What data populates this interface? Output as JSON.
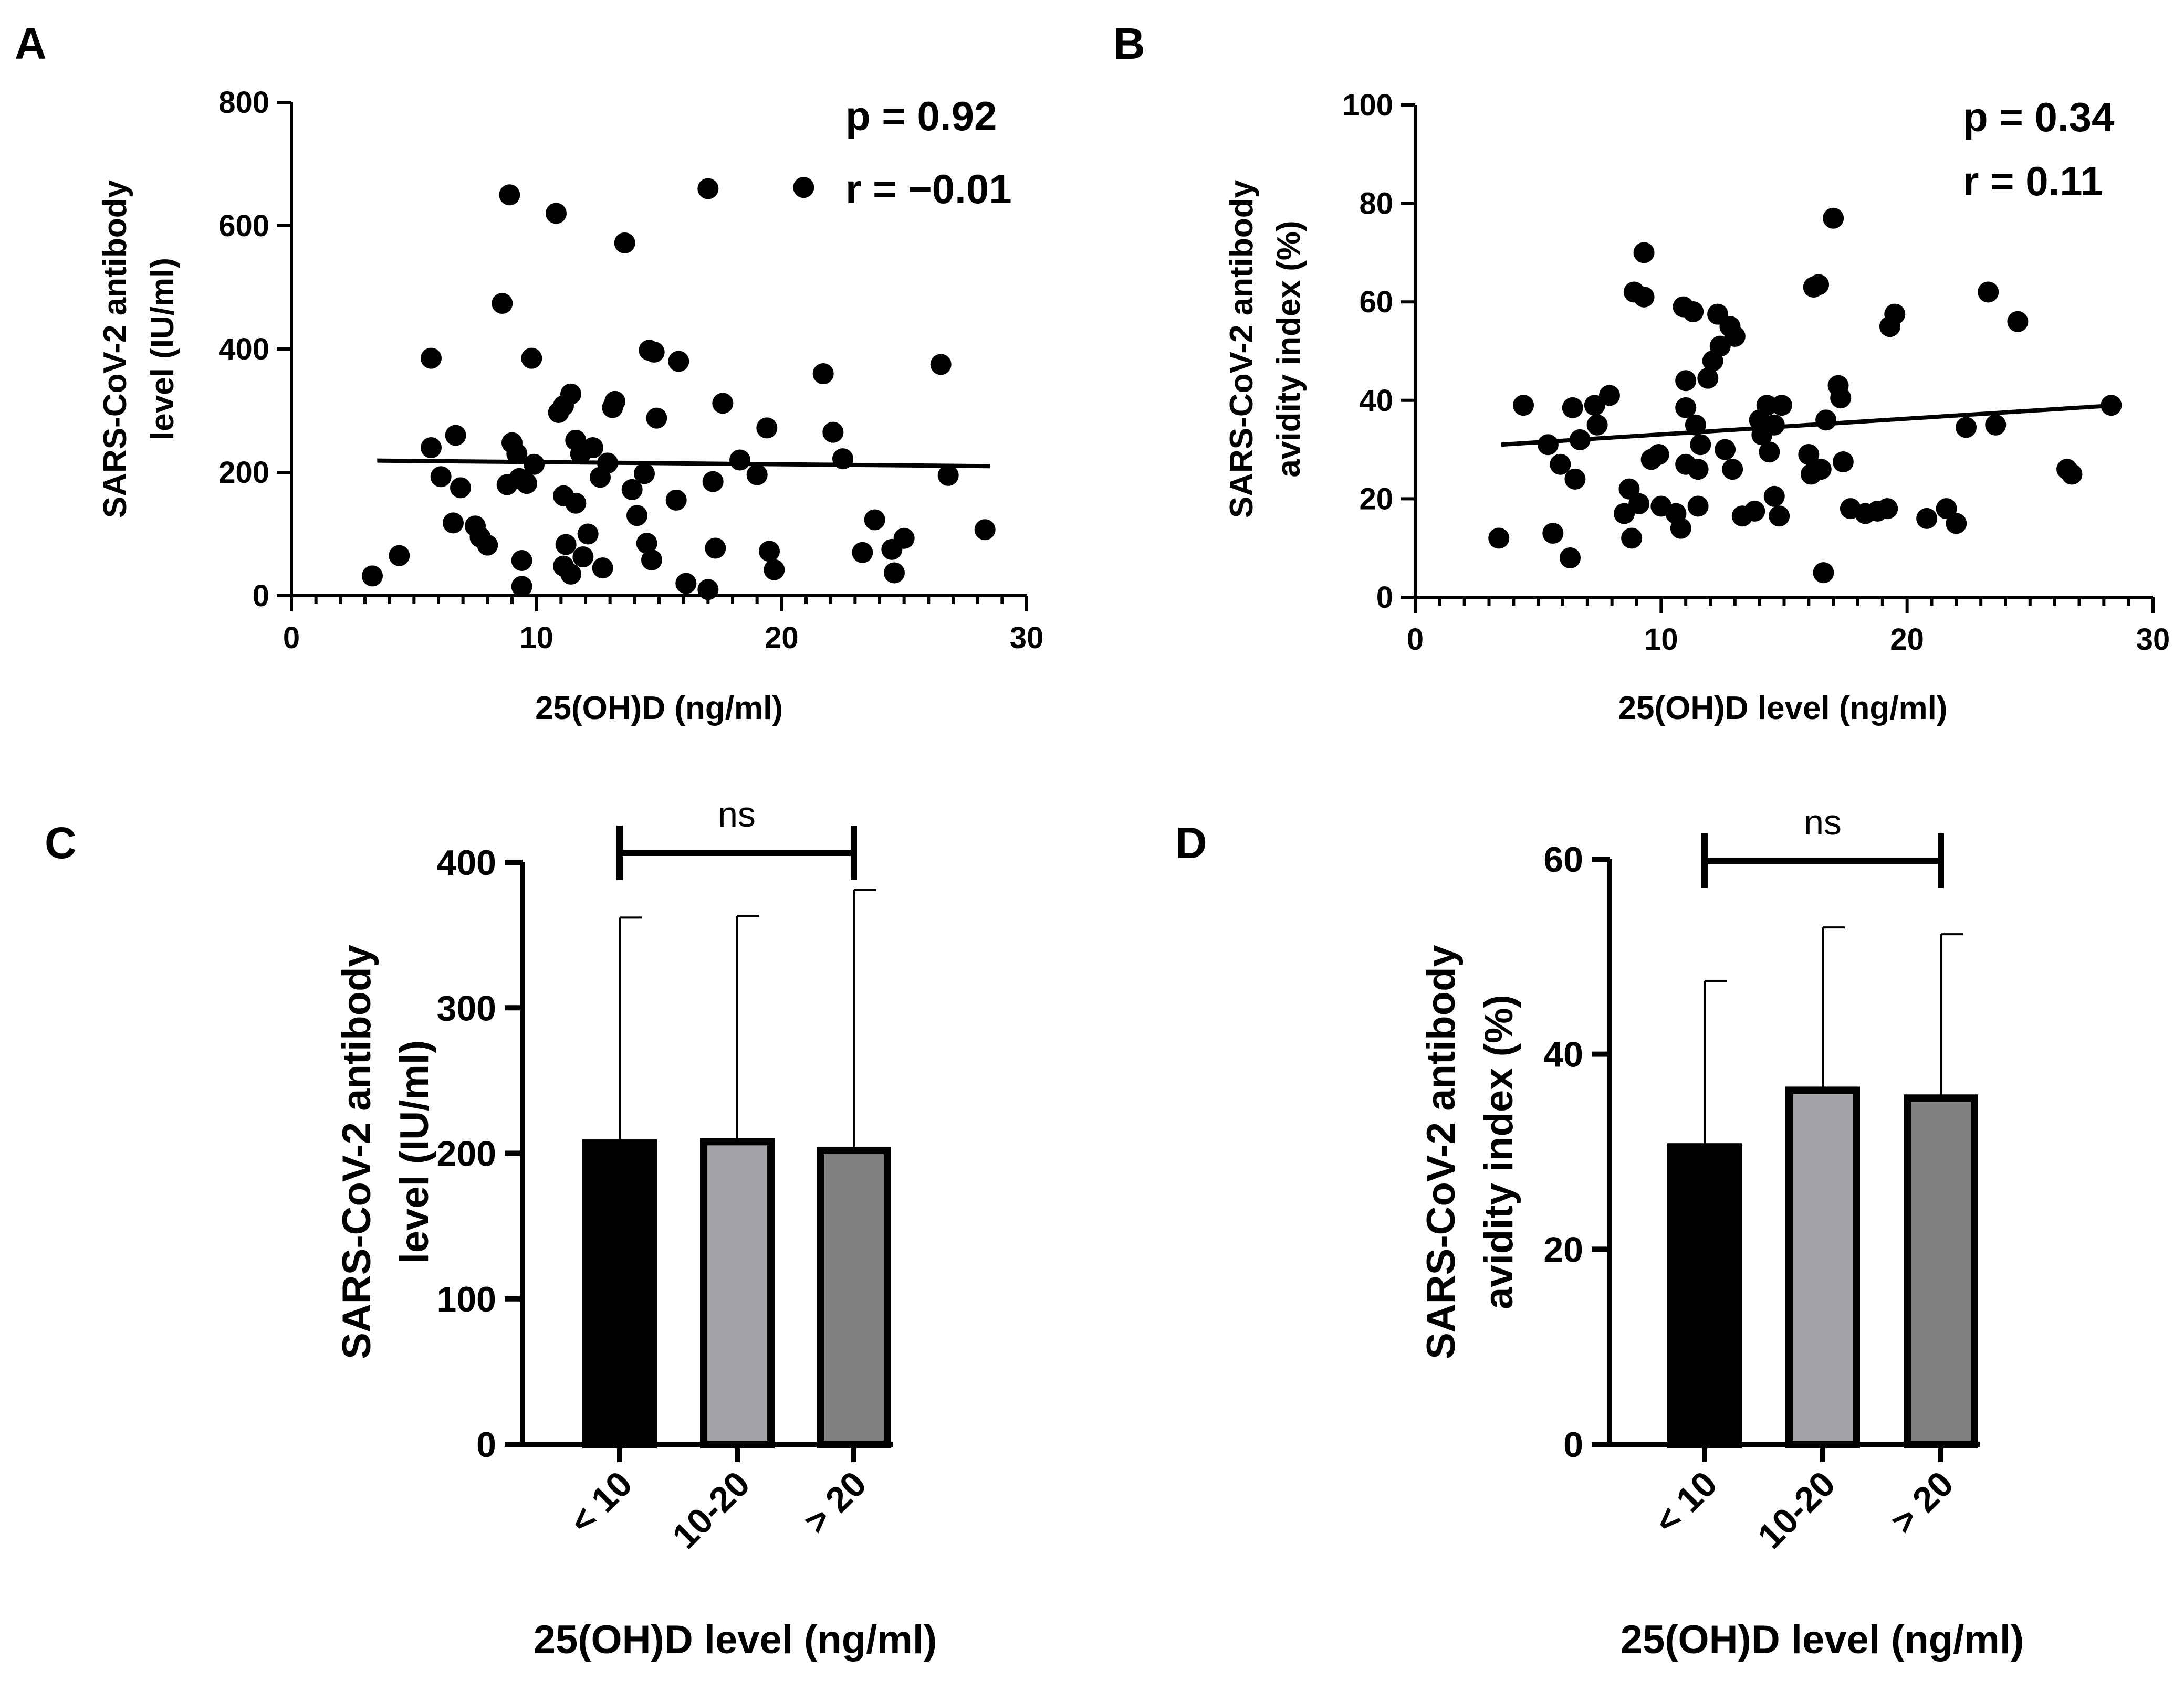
{
  "figure": {
    "panels": {
      "A": {
        "letter": "A"
      },
      "B": {
        "letter": "B"
      },
      "C": {
        "letter": "C"
      },
      "D": {
        "letter": "D"
      }
    }
  },
  "chart_data": [
    {
      "panel": "A",
      "type": "scatter",
      "title": "",
      "xlabel": "25(OH)D (ng/ml)",
      "ylabel": [
        "SARS-CoV-2 antibody",
        "level (IU/ml)"
      ],
      "xlim": [
        0,
        30
      ],
      "ylim": [
        0,
        800
      ],
      "xticks": [
        0,
        10,
        20,
        30
      ],
      "yticks": [
        0,
        200,
        400,
        600,
        800
      ],
      "x_minor_step": 1,
      "annotations": {
        "p": "p = 0.92",
        "r": "r =  −0.01"
      },
      "regression": {
        "x": [
          3.5,
          28.5
        ],
        "y": [
          219,
          210
        ]
      },
      "points": [
        [
          3.3,
          32
        ],
        [
          4.4,
          65
        ],
        [
          5.7,
          240
        ],
        [
          5.7,
          385
        ],
        [
          6.1,
          193
        ],
        [
          6.6,
          118
        ],
        [
          6.7,
          260
        ],
        [
          6.9,
          175
        ],
        [
          7.5,
          113
        ],
        [
          7.7,
          95
        ],
        [
          8.0,
          82
        ],
        [
          8.6,
          474
        ],
        [
          8.9,
          650
        ],
        [
          8.8,
          180
        ],
        [
          9.0,
          248
        ],
        [
          9.2,
          230
        ],
        [
          9.3,
          190
        ],
        [
          9.4,
          57
        ],
        [
          9.4,
          15
        ],
        [
          9.6,
          182
        ],
        [
          9.8,
          385
        ],
        [
          9.9,
          213
        ],
        [
          10.8,
          620
        ],
        [
          10.9,
          297
        ],
        [
          11.1,
          308
        ],
        [
          11.1,
          162
        ],
        [
          11.2,
          83
        ],
        [
          11.1,
          48
        ],
        [
          11.4,
          327
        ],
        [
          11.4,
          35
        ],
        [
          11.6,
          252
        ],
        [
          11.6,
          150
        ],
        [
          11.8,
          230
        ],
        [
          11.9,
          63
        ],
        [
          12.1,
          100
        ],
        [
          12.3,
          240
        ],
        [
          12.6,
          192
        ],
        [
          12.7,
          45
        ],
        [
          12.9,
          215
        ],
        [
          13.1,
          305
        ],
        [
          13.2,
          315
        ],
        [
          13.6,
          572
        ],
        [
          13.9,
          172
        ],
        [
          14.1,
          130
        ],
        [
          14.4,
          198
        ],
        [
          14.5,
          85
        ],
        [
          14.6,
          398
        ],
        [
          14.7,
          58
        ],
        [
          14.8,
          395
        ],
        [
          14.9,
          288
        ],
        [
          15.7,
          155
        ],
        [
          15.8,
          380
        ],
        [
          16.1,
          20
        ],
        [
          17.0,
          10
        ],
        [
          17.0,
          660
        ],
        [
          17.3,
          77
        ],
        [
          17.2,
          185
        ],
        [
          17.6,
          312
        ],
        [
          18.3,
          220
        ],
        [
          19.0,
          196
        ],
        [
          19.4,
          272
        ],
        [
          19.5,
          72
        ],
        [
          19.7,
          42
        ],
        [
          20.9,
          662
        ],
        [
          21.7,
          360
        ],
        [
          22.1,
          265
        ],
        [
          22.5,
          222
        ],
        [
          23.3,
          70
        ],
        [
          23.8,
          123
        ],
        [
          24.5,
          75
        ],
        [
          24.6,
          37
        ],
        [
          25.0,
          93
        ],
        [
          26.5,
          375
        ],
        [
          26.8,
          195
        ],
        [
          28.3,
          107
        ]
      ]
    },
    {
      "panel": "B",
      "type": "scatter",
      "title": "",
      "xlabel": "25(OH)D level (ng/ml)",
      "ylabel": [
        "SARS-CoV-2 antibody",
        "avidity index (%)"
      ],
      "xlim": [
        0,
        30
      ],
      "ylim": [
        0,
        100
      ],
      "xticks": [
        0,
        10,
        20,
        30
      ],
      "yticks": [
        0,
        20,
        40,
        60,
        80,
        100
      ],
      "x_minor_step": 1,
      "annotations": {
        "p": "p = 0.34",
        "r": "r =  0.11"
      },
      "regression": {
        "x": [
          3.5,
          28.5
        ],
        "y": [
          31,
          39
        ]
      },
      "points": [
        [
          3.4,
          12
        ],
        [
          4.4,
          39
        ],
        [
          5.4,
          31
        ],
        [
          5.6,
          13
        ],
        [
          5.9,
          27
        ],
        [
          6.3,
          8
        ],
        [
          6.4,
          38.5
        ],
        [
          6.5,
          24
        ],
        [
          6.7,
          32
        ],
        [
          7.3,
          39
        ],
        [
          7.4,
          35
        ],
        [
          7.9,
          41
        ],
        [
          8.5,
          17
        ],
        [
          8.7,
          22
        ],
        [
          8.8,
          12
        ],
        [
          8.9,
          62
        ],
        [
          9.1,
          19
        ],
        [
          9.3,
          70
        ],
        [
          9.3,
          61
        ],
        [
          9.6,
          28
        ],
        [
          9.9,
          29
        ],
        [
          10.0,
          18.5
        ],
        [
          10.6,
          17
        ],
        [
          10.8,
          14
        ],
        [
          10.9,
          59
        ],
        [
          11.0,
          44
        ],
        [
          11.0,
          38.5
        ],
        [
          11.0,
          27
        ],
        [
          11.3,
          58
        ],
        [
          11.4,
          35
        ],
        [
          11.5,
          26
        ],
        [
          11.6,
          31
        ],
        [
          11.5,
          18.5
        ],
        [
          11.9,
          44.5
        ],
        [
          12.1,
          48
        ],
        [
          12.3,
          57.5
        ],
        [
          12.4,
          51
        ],
        [
          12.6,
          30
        ],
        [
          12.8,
          55
        ],
        [
          12.9,
          26
        ],
        [
          13.0,
          53
        ],
        [
          13.3,
          16.5
        ],
        [
          13.8,
          17.5
        ],
        [
          14.0,
          36
        ],
        [
          14.1,
          33
        ],
        [
          14.3,
          39
        ],
        [
          14.4,
          29.5
        ],
        [
          14.6,
          35
        ],
        [
          14.6,
          20.5
        ],
        [
          14.8,
          16.5
        ],
        [
          14.9,
          39
        ],
        [
          16.0,
          29
        ],
        [
          16.1,
          25
        ],
        [
          16.2,
          63
        ],
        [
          16.4,
          63.5
        ],
        [
          16.5,
          26
        ],
        [
          16.6,
          5
        ],
        [
          16.7,
          36
        ],
        [
          17.0,
          77
        ],
        [
          17.2,
          43
        ],
        [
          17.3,
          40.5
        ],
        [
          17.4,
          27.5
        ],
        [
          17.7,
          18
        ],
        [
          18.3,
          17
        ],
        [
          18.8,
          17.5
        ],
        [
          19.2,
          18
        ],
        [
          19.3,
          55
        ],
        [
          19.5,
          57.5
        ],
        [
          20.8,
          16
        ],
        [
          21.6,
          18
        ],
        [
          22.0,
          15
        ],
        [
          22.4,
          34.5
        ],
        [
          23.3,
          62
        ],
        [
          23.6,
          35
        ],
        [
          24.5,
          56
        ],
        [
          26.5,
          26
        ],
        [
          26.7,
          25
        ],
        [
          28.3,
          39
        ]
      ]
    },
    {
      "panel": "C",
      "type": "bar",
      "title": "",
      "xlabel": "25(OH)D level (ng/ml)",
      "ylabel": [
        "SARS-CoV-2 antibody",
        "level (IU/ml)"
      ],
      "ylim": [
        0,
        400
      ],
      "yticks": [
        0,
        100,
        200,
        300,
        400
      ],
      "categories": [
        "< 10",
        "10-20",
        "> 20"
      ],
      "values": [
        207,
        208,
        202
      ],
      "error_upper": [
        362,
        363,
        381
      ],
      "bar_colors": [
        "#000000",
        "#a4a3a8",
        "#808080"
      ],
      "significance": {
        "from": 0,
        "to": 2,
        "label": "ns"
      }
    },
    {
      "panel": "D",
      "type": "bar",
      "title": "",
      "xlabel": "25(OH)D level (ng/ml)",
      "ylabel": [
        "SARS-CoV-2 antibody",
        "avidity index (%)"
      ],
      "ylim": [
        0,
        60
      ],
      "yticks": [
        0,
        20,
        40,
        60
      ],
      "categories": [
        "< 10",
        "10-20",
        "> 20"
      ],
      "values": [
        30.5,
        36.3,
        35.5
      ],
      "error_upper": [
        47.5,
        53,
        52.3
      ],
      "bar_colors": [
        "#000000",
        "#a4a3a8",
        "#808080"
      ],
      "significance": {
        "from": 0,
        "to": 2,
        "label": "ns"
      }
    }
  ]
}
